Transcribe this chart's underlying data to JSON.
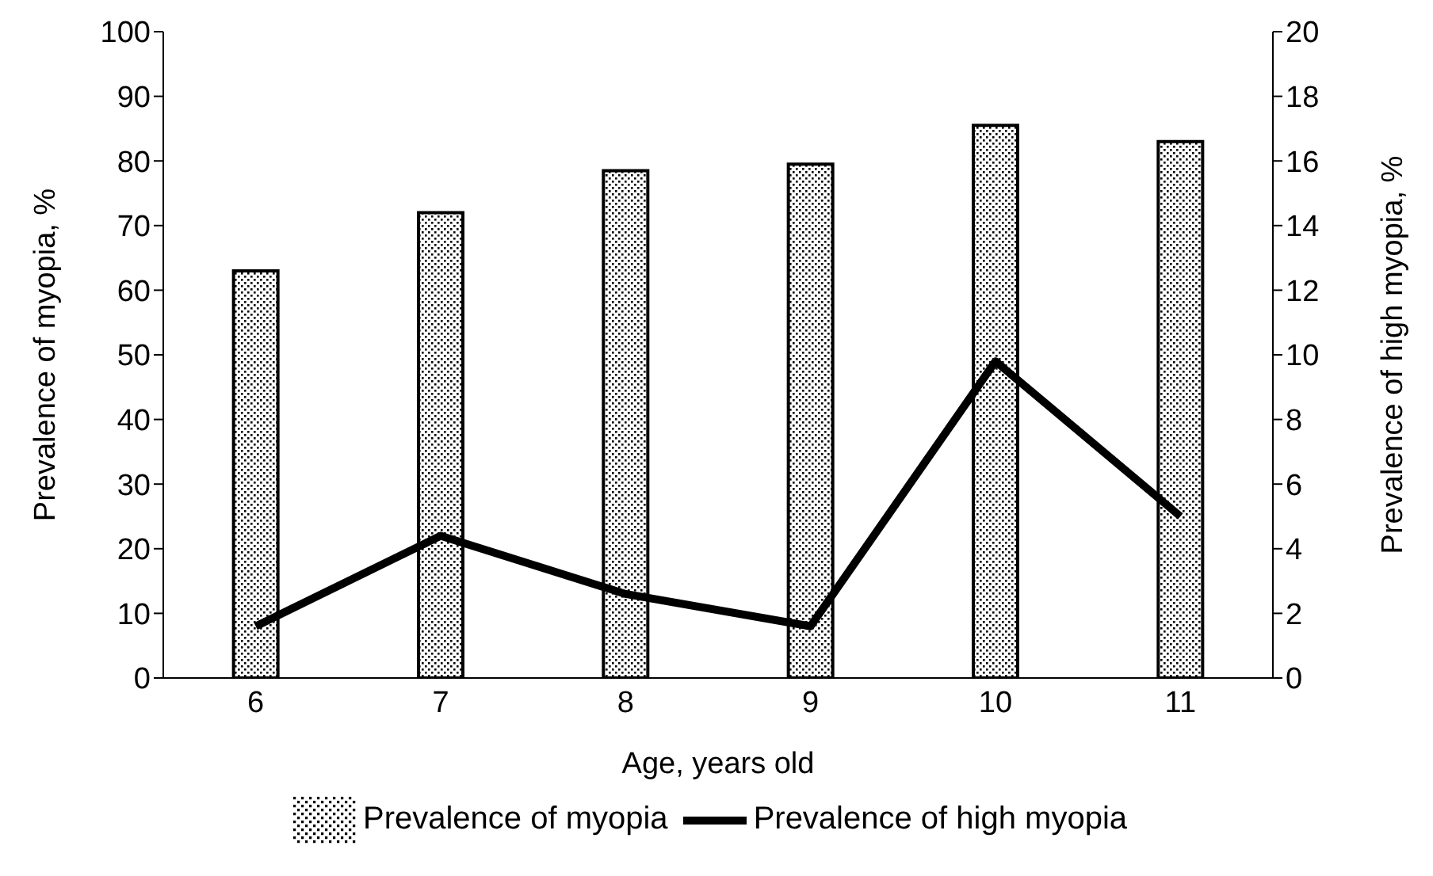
{
  "chart_data": {
    "type": "bar",
    "xlabel": "Age, years old",
    "ylabel": "Prevalence of myopia, %",
    "y2label": "Prevalence of high myopia, %",
    "categories": [
      "6",
      "7",
      "8",
      "9",
      "10",
      "11"
    ],
    "series": [
      {
        "name": "Prevalence of myopia",
        "color": "#000000",
        "values": [
          63,
          72,
          78.5,
          79.5,
          85.5,
          83
        ]
      },
      {
        "name": "Prevalence of high myopia",
        "type": "line",
        "axis": "y2",
        "color": "#000000",
        "values": [
          1.6,
          4.4,
          2.6,
          1.6,
          9.8,
          5.0
        ]
      }
    ],
    "ylim": [
      0,
      100
    ],
    "yticks": [
      0,
      10,
      20,
      30,
      40,
      50,
      60,
      70,
      80,
      90,
      100
    ],
    "y2lim": [
      0,
      20
    ],
    "y2ticks": [
      0,
      2,
      4,
      6,
      8,
      10,
      12,
      14,
      16,
      18,
      20
    ],
    "grid": false,
    "legend": "bottom",
    "marker": "none",
    "line_style": "solid"
  }
}
